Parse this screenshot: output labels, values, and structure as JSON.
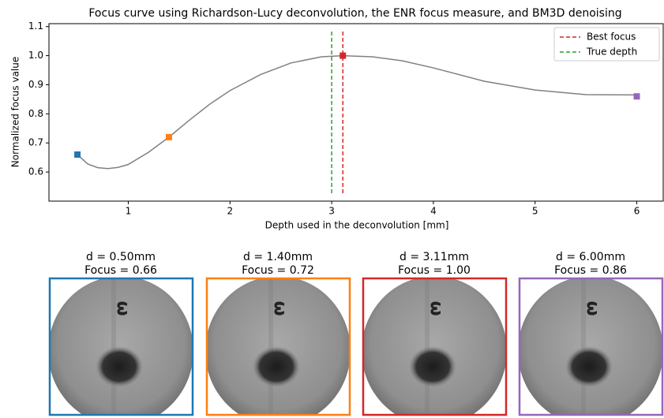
{
  "chart_data": {
    "type": "line",
    "title": "Focus curve using Richardson-Lucy deconvolution, the ENR focus measure, and BM3D denoising",
    "xlabel": "Depth used in the deconvolution [mm]",
    "ylabel": "Normalized focus value",
    "xlim": [
      0.22,
      6.26
    ],
    "ylim": [
      0.5,
      1.11
    ],
    "xticks": [
      1,
      2,
      3,
      4,
      5,
      6
    ],
    "yticks": [
      0.6,
      0.7,
      0.8,
      0.9,
      {
        "value": 1.0,
        "label": "1.0"
      },
      1.1
    ],
    "curve": {
      "color": "#808080",
      "x": [
        0.5,
        0.6,
        0.7,
        0.8,
        0.9,
        1.0,
        1.2,
        1.4,
        1.6,
        1.8,
        2.0,
        2.3,
        2.6,
        2.9,
        3.11,
        3.4,
        3.7,
        4.0,
        4.5,
        5.0,
        5.5,
        6.0
      ],
      "values": [
        0.66,
        0.628,
        0.615,
        0.612,
        0.616,
        0.626,
        0.668,
        0.72,
        0.778,
        0.833,
        0.88,
        0.935,
        0.975,
        0.996,
        1.0,
        0.996,
        0.982,
        0.958,
        0.912,
        0.882,
        0.866,
        0.865
      ]
    },
    "markers": {
      "x": [
        0.5,
        1.4,
        3.11,
        6.0
      ],
      "values": [
        0.66,
        0.72,
        1.0,
        0.86
      ],
      "colors": [
        "#1f77b4",
        "#ff7f0e",
        "#d62728",
        "#9467bd"
      ]
    },
    "vlines": [
      {
        "name": "Best focus",
        "x": 3.11,
        "color": "#d62728"
      },
      {
        "name": "True depth",
        "x": 3.0,
        "color": "#2ca02c"
      }
    ],
    "legend": "upper right"
  },
  "panels": [
    {
      "title": "d = 0.50mm",
      "focus": "Focus = 0.66",
      "color": "#1f77b4"
    },
    {
      "title": "d = 1.40mm",
      "focus": "Focus = 0.72",
      "color": "#ff7f0e"
    },
    {
      "title": "d = 3.11mm",
      "focus": "Focus = 1.00",
      "color": "#d62728"
    },
    {
      "title": "d = 6.00mm",
      "focus": "Focus = 0.86",
      "color": "#9467bd"
    }
  ]
}
